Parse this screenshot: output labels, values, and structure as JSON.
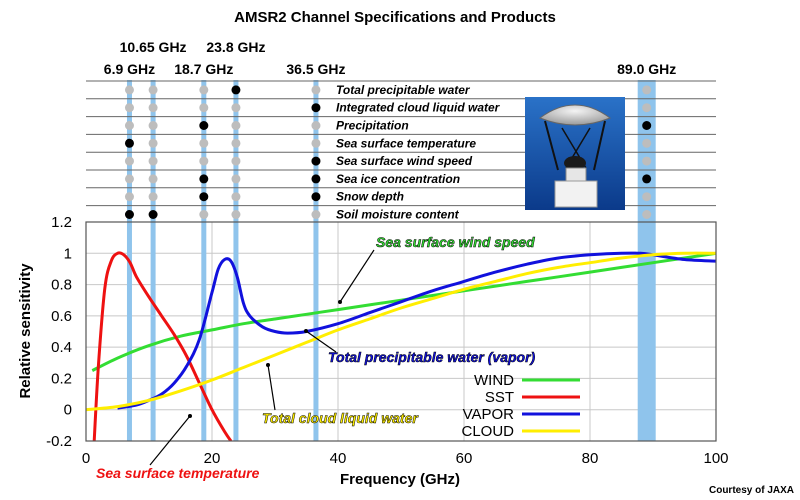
{
  "title": "AMSR2 Channel Specifications and Products",
  "credit": "Courtesy of JAXA",
  "colors": {
    "channel_band": "#8fc4ec",
    "dot_on": "#000000",
    "dot_off": "#bdbdbd"
  },
  "chart_data": {
    "type": "line",
    "title": "AMSR2 Channel Specifications and Products",
    "xlabel": "Frequency (GHz)",
    "ylabel": "Relative sensitivity",
    "xlim": [
      0,
      100
    ],
    "ylim": [
      -0.2,
      1.2
    ],
    "x_ticks": [
      0,
      20,
      40,
      60,
      80,
      100
    ],
    "y_ticks": [
      -0.2,
      0,
      0.2,
      0.4,
      0.6,
      0.8,
      1,
      1.2
    ],
    "x_tick_labels": [
      "0",
      "20",
      "40",
      "60",
      "80",
      "100"
    ],
    "y_tick_labels": [
      "-0.2",
      "0",
      "0.2",
      "0.4",
      "0.6",
      "0.8",
      "1",
      "1.2"
    ],
    "grid": true,
    "legend_position": "bottom-right",
    "channels": [
      {
        "label": "6.9 GHz",
        "freq": 6.9,
        "wide": false
      },
      {
        "label": "10.65 GHz",
        "freq": 10.65,
        "wide": false
      },
      {
        "label": "18.7 GHz",
        "freq": 18.7,
        "wide": false
      },
      {
        "label": "23.8 GHz",
        "freq": 23.8,
        "wide": false
      },
      {
        "label": "36.5 GHz",
        "freq": 36.5,
        "wide": false
      },
      {
        "label": "89.0 GHz",
        "freq": 89.0,
        "wide": true
      }
    ],
    "products": [
      {
        "name": "Total precipitable water",
        "dots": [
          0,
          0,
          0,
          1,
          0,
          0
        ]
      },
      {
        "name": "Integrated cloud liquid water",
        "dots": [
          0,
          0,
          0,
          0,
          1,
          0
        ]
      },
      {
        "name": "Precipitation",
        "dots": [
          0,
          0,
          1,
          0,
          0,
          1
        ]
      },
      {
        "name": "Sea surface temperature",
        "dots": [
          1,
          0,
          0,
          0,
          0,
          0
        ]
      },
      {
        "name": "Sea surface wind speed",
        "dots": [
          0,
          0,
          0,
          0,
          1,
          0
        ]
      },
      {
        "name": "Sea ice concentration",
        "dots": [
          0,
          0,
          1,
          0,
          1,
          1
        ]
      },
      {
        "name": "Snow depth",
        "dots": [
          0,
          0,
          1,
          0,
          1,
          0
        ]
      },
      {
        "name": "Soil moisture content",
        "dots": [
          1,
          1,
          0,
          0,
          0,
          0
        ]
      }
    ],
    "series": [
      {
        "name": "WIND",
        "color": "#33dd33",
        "x": [
          1,
          5,
          10,
          15,
          20,
          25,
          30,
          35,
          40,
          45,
          50,
          55,
          60,
          65,
          70,
          75,
          80,
          85,
          90,
          95,
          100
        ],
        "y": [
          0.25,
          0.33,
          0.41,
          0.47,
          0.51,
          0.55,
          0.58,
          0.61,
          0.64,
          0.67,
          0.7,
          0.73,
          0.76,
          0.79,
          0.82,
          0.85,
          0.88,
          0.91,
          0.94,
          0.97,
          1.0
        ]
      },
      {
        "name": "SST",
        "color": "#ee1111",
        "x": [
          1.3,
          2,
          3,
          4,
          5,
          6,
          7,
          8,
          10,
          12,
          14,
          16,
          18,
          20,
          22,
          23
        ],
        "y": [
          -0.2,
          0.3,
          0.78,
          0.95,
          1.0,
          0.99,
          0.94,
          0.85,
          0.72,
          0.6,
          0.48,
          0.34,
          0.17,
          0.0,
          -0.14,
          -0.2
        ]
      },
      {
        "name": "VAPOR",
        "color": "#1111dd",
        "x": [
          5,
          8,
          10,
          12,
          14,
          16,
          18,
          20,
          21,
          22,
          23,
          24,
          25,
          26,
          28,
          30,
          32,
          35,
          40,
          45,
          50,
          55,
          60,
          65,
          70,
          75,
          80,
          85,
          88,
          90,
          95,
          100
        ],
        "y": [
          0.01,
          0.03,
          0.06,
          0.1,
          0.17,
          0.28,
          0.45,
          0.75,
          0.9,
          0.96,
          0.95,
          0.85,
          0.68,
          0.6,
          0.53,
          0.5,
          0.49,
          0.5,
          0.55,
          0.62,
          0.69,
          0.76,
          0.82,
          0.88,
          0.93,
          0.97,
          0.99,
          1.0,
          1.0,
          0.99,
          0.96,
          0.95
        ]
      },
      {
        "name": "CLOUD",
        "color": "#ffee00",
        "x": [
          0,
          5,
          10,
          15,
          20,
          25,
          30,
          35,
          40,
          45,
          50,
          55,
          60,
          65,
          70,
          75,
          80,
          85,
          90,
          95,
          100
        ],
        "y": [
          0.0,
          0.02,
          0.06,
          0.12,
          0.19,
          0.27,
          0.35,
          0.43,
          0.51,
          0.58,
          0.65,
          0.71,
          0.77,
          0.82,
          0.87,
          0.91,
          0.94,
          0.97,
          0.99,
          1.0,
          1.0
        ]
      }
    ],
    "annotations": [
      {
        "text": "Sea surface wind speed",
        "color": "#33dd33"
      },
      {
        "text": "Total precipitable water (vapor)",
        "color": "#1111dd"
      },
      {
        "text": "Total cloud liquid water",
        "color": "#ffee00"
      },
      {
        "text": "Sea surface temperature",
        "color": "#ee1111"
      }
    ]
  }
}
